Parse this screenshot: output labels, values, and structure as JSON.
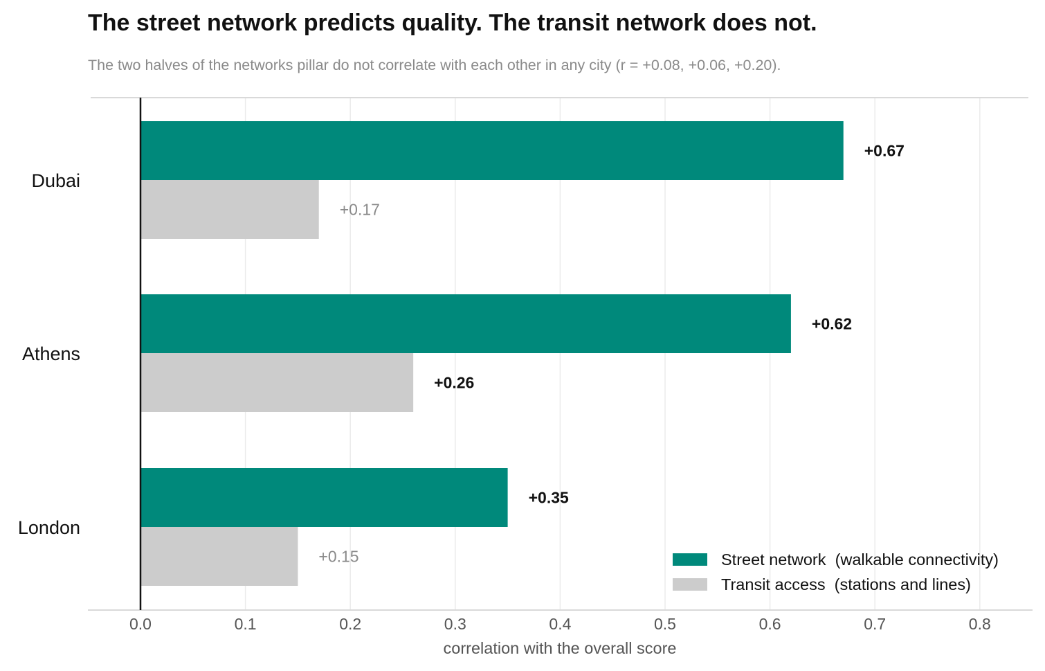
{
  "title": "The street network predicts quality. The transit network does not.",
  "subtitle": "The two halves of the networks pillar do not correlate with each other in any city (r = +0.08, +0.06, +0.20).",
  "colors": {
    "street": "#00897B",
    "transit": "#CCCCCC",
    "grid": "#EBEBEB",
    "frame": "#D9D9D9",
    "zero_line": "#111111"
  },
  "chart_data": {
    "type": "bar",
    "orientation": "horizontal",
    "categories": [
      "Dubai",
      "Athens",
      "London"
    ],
    "series": [
      {
        "name": "Street network  (walkable connectivity)",
        "values": [
          0.67,
          0.62,
          0.35
        ],
        "labels": [
          "+0.67",
          "+0.62",
          "+0.35"
        ],
        "label_style": [
          "bold",
          "bold",
          "bold"
        ]
      },
      {
        "name": "Transit access  (stations and lines)",
        "values": [
          0.17,
          0.26,
          0.15
        ],
        "labels": [
          "+0.17",
          "+0.26",
          "+0.15"
        ],
        "label_style": [
          "muted",
          "bold",
          "muted"
        ]
      }
    ],
    "xlabel": "correlation with the overall score",
    "xlim": [
      0,
      0.8
    ],
    "xticks": [
      0.0,
      0.1,
      0.2,
      0.3,
      0.4,
      0.5,
      0.6,
      0.7,
      0.8
    ],
    "xtick_labels": [
      "0.0",
      "0.1",
      "0.2",
      "0.3",
      "0.4",
      "0.5",
      "0.6",
      "0.7",
      "0.8"
    ],
    "grid": "vertical",
    "legend_position": "bottom-right"
  }
}
